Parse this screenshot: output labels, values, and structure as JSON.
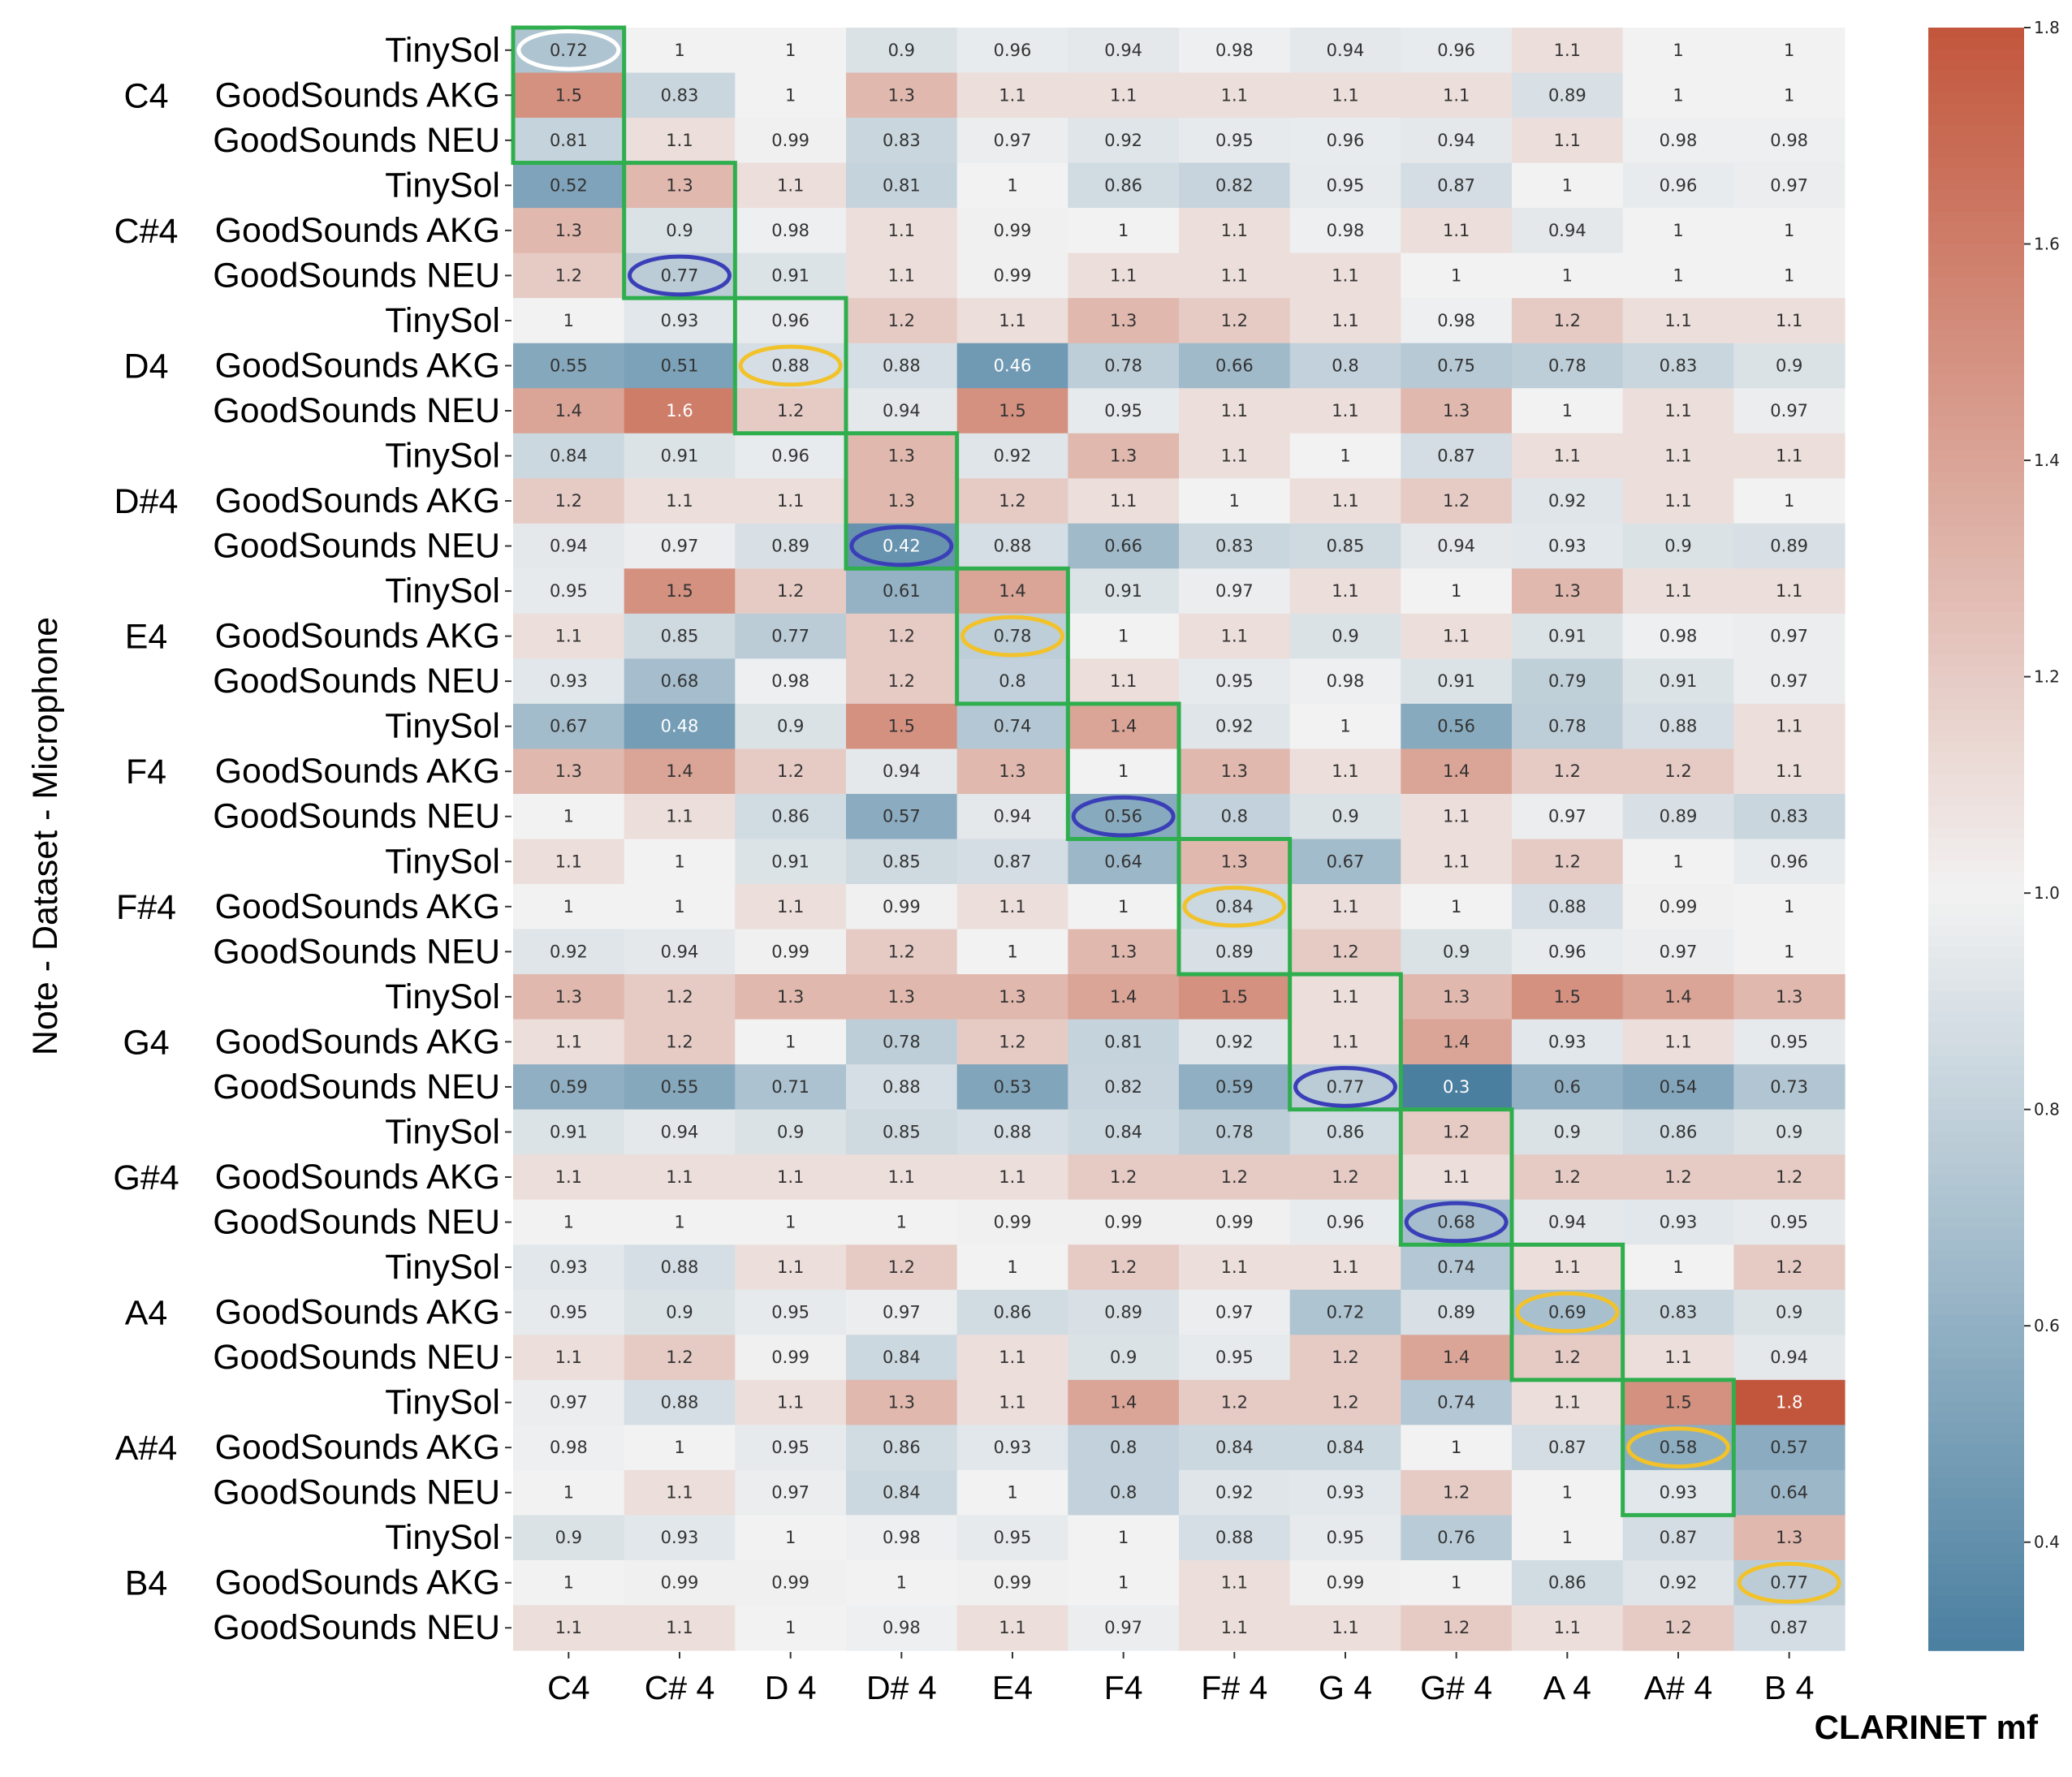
{
  "chart_data": {
    "type": "heatmap",
    "title": "CLARINET mf",
    "ylabel": "Note - Dataset - Microphone",
    "xlabel": "",
    "columns": [
      "C4",
      "C# 4",
      "D 4",
      "D# 4",
      "E4",
      "F4",
      "F# 4",
      "G 4",
      "G# 4",
      "A 4",
      "A# 4",
      "B 4"
    ],
    "notes": [
      "C4",
      "C#4",
      "D4",
      "D#4",
      "E4",
      "F4",
      "F#4",
      "G4",
      "G#4",
      "A4",
      "A#4",
      "B4"
    ],
    "datasets": [
      "TinySol",
      "GoodSounds AKG",
      "GoodSounds NEU"
    ],
    "values": [
      [
        0.72,
        1,
        1,
        0.9,
        0.96,
        0.94,
        0.98,
        0.94,
        0.96,
        1.1,
        1,
        1
      ],
      [
        1.5,
        0.83,
        1,
        1.3,
        1.1,
        1.1,
        1.1,
        1.1,
        1.1,
        0.89,
        1,
        1
      ],
      [
        0.81,
        1.1,
        0.99,
        0.83,
        0.97,
        0.92,
        0.95,
        0.96,
        0.94,
        1.1,
        0.98,
        0.98
      ],
      [
        0.52,
        1.3,
        1.1,
        0.81,
        1,
        0.86,
        0.82,
        0.95,
        0.87,
        1,
        0.96,
        0.97
      ],
      [
        1.3,
        0.9,
        0.98,
        1.1,
        0.99,
        1,
        1.1,
        0.98,
        1.1,
        0.94,
        1,
        1
      ],
      [
        1.2,
        0.77,
        0.91,
        1.1,
        0.99,
        1.1,
        1.1,
        1.1,
        1,
        1,
        1,
        1
      ],
      [
        1,
        0.93,
        0.96,
        1.2,
        1.1,
        1.3,
        1.2,
        1.1,
        0.98,
        1.2,
        1.1,
        1.1
      ],
      [
        0.55,
        0.51,
        0.88,
        0.88,
        0.46,
        0.78,
        0.66,
        0.8,
        0.75,
        0.78,
        0.83,
        0.9
      ],
      [
        1.4,
        1.6,
        1.2,
        0.94,
        1.5,
        0.95,
        1.1,
        1.1,
        1.3,
        1,
        1.1,
        0.97
      ],
      [
        0.84,
        0.91,
        0.96,
        1.3,
        0.92,
        1.3,
        1.1,
        1,
        0.87,
        1.1,
        1.1,
        1.1
      ],
      [
        1.2,
        1.1,
        1.1,
        1.3,
        1.2,
        1.1,
        1,
        1.1,
        1.2,
        0.92,
        1.1,
        1
      ],
      [
        0.94,
        0.97,
        0.89,
        0.42,
        0.88,
        0.66,
        0.83,
        0.85,
        0.94,
        0.93,
        0.9,
        0.89
      ],
      [
        0.95,
        1.5,
        1.2,
        0.61,
        1.4,
        0.91,
        0.97,
        1.1,
        1,
        1.3,
        1.1,
        1.1
      ],
      [
        1.1,
        0.85,
        0.77,
        1.2,
        0.78,
        1,
        1.1,
        0.9,
        1.1,
        0.91,
        0.98,
        0.97
      ],
      [
        0.93,
        0.68,
        0.98,
        1.2,
        0.8,
        1.1,
        0.95,
        0.98,
        0.91,
        0.79,
        0.91,
        0.97
      ],
      [
        0.67,
        0.48,
        0.9,
        1.5,
        0.74,
        1.4,
        0.92,
        1,
        0.56,
        0.78,
        0.88,
        1.1
      ],
      [
        1.3,
        1.4,
        1.2,
        0.94,
        1.3,
        1,
        1.3,
        1.1,
        1.4,
        1.2,
        1.2,
        1.1
      ],
      [
        1,
        1.1,
        0.86,
        0.57,
        0.94,
        0.56,
        0.8,
        0.9,
        1.1,
        0.97,
        0.89,
        0.83
      ],
      [
        1.1,
        1,
        0.91,
        0.85,
        0.87,
        0.64,
        1.3,
        0.67,
        1.1,
        1.2,
        1,
        0.96
      ],
      [
        1,
        1,
        1.1,
        0.99,
        1.1,
        1,
        0.84,
        1.1,
        1,
        0.88,
        0.99,
        1
      ],
      [
        0.92,
        0.94,
        0.99,
        1.2,
        1,
        1.3,
        0.89,
        1.2,
        0.9,
        0.96,
        0.97,
        1
      ],
      [
        1.3,
        1.2,
        1.3,
        1.3,
        1.3,
        1.4,
        1.5,
        1.1,
        1.3,
        1.5,
        1.4,
        1.3
      ],
      [
        1.1,
        1.2,
        1,
        0.78,
        1.2,
        0.81,
        0.92,
        1.1,
        1.4,
        0.93,
        1.1,
        0.95
      ],
      [
        0.59,
        0.55,
        0.71,
        0.88,
        0.53,
        0.82,
        0.59,
        0.77,
        0.3,
        0.6,
        0.54,
        0.73
      ],
      [
        0.91,
        0.94,
        0.9,
        0.85,
        0.88,
        0.84,
        0.78,
        0.86,
        1.2,
        0.9,
        0.86,
        0.9
      ],
      [
        1.1,
        1.1,
        1.1,
        1.1,
        1.1,
        1.2,
        1.2,
        1.2,
        1.1,
        1.2,
        1.2,
        1.2
      ],
      [
        1,
        1,
        1,
        1,
        0.99,
        0.99,
        0.99,
        0.96,
        0.68,
        0.94,
        0.93,
        0.95
      ],
      [
        0.93,
        0.88,
        1.1,
        1.2,
        1,
        1.2,
        1.1,
        1.1,
        0.74,
        1.1,
        1,
        1.2
      ],
      [
        0.95,
        0.9,
        0.95,
        0.97,
        0.86,
        0.89,
        0.97,
        0.72,
        0.89,
        0.69,
        0.83,
        0.9
      ],
      [
        1.1,
        1.2,
        0.99,
        0.84,
        1.1,
        0.9,
        0.95,
        1.2,
        1.4,
        1.2,
        1.1,
        0.94
      ],
      [
        0.97,
        0.88,
        1.1,
        1.3,
        1.1,
        1.4,
        1.2,
        1.2,
        0.74,
        1.1,
        1.5,
        1.8
      ],
      [
        0.98,
        1,
        0.95,
        0.86,
        0.93,
        0.8,
        0.84,
        0.84,
        1,
        0.87,
        0.58,
        0.57
      ],
      [
        1,
        1.1,
        0.97,
        0.84,
        1,
        0.8,
        0.92,
        0.93,
        1.2,
        1,
        0.93,
        0.64
      ],
      [
        0.9,
        0.93,
        1,
        0.98,
        0.95,
        1,
        0.88,
        0.95,
        0.76,
        1,
        0.87,
        1.3
      ],
      [
        1,
        0.99,
        0.99,
        1,
        0.99,
        1,
        1.1,
        0.99,
        1,
        0.86,
        0.92,
        0.77
      ],
      [
        1.1,
        1.1,
        1,
        0.98,
        1.1,
        0.97,
        1.1,
        1.1,
        1.2,
        1.1,
        1.2,
        0.87
      ]
    ],
    "vmin": 0.3,
    "vmax": 1.8,
    "center": 1.0,
    "colormap": {
      "low": "#4a7fa0",
      "mid": "#f2f2f2",
      "high": "#c2563c"
    },
    "colorbar_ticks": [
      0.4,
      0.6,
      0.8,
      1.0,
      1.2,
      1.4,
      1.6,
      1.8
    ],
    "colorbar_tick_labels": [
      "0.4",
      "0.6",
      "0.8",
      "1.0",
      "1.2",
      "1.4",
      "1.6",
      "1.8"
    ],
    "highlight_boxes_color": "#2fae4e",
    "highlight_boxes": [
      {
        "col": 0,
        "rows": [
          0,
          2
        ]
      },
      {
        "col": 1,
        "rows": [
          3,
          5
        ]
      },
      {
        "col": 2,
        "rows": [
          6,
          8
        ]
      },
      {
        "col": 3,
        "rows": [
          9,
          11
        ]
      },
      {
        "col": 4,
        "rows": [
          12,
          14
        ]
      },
      {
        "col": 5,
        "rows": [
          15,
          17
        ]
      },
      {
        "col": 6,
        "rows": [
          18,
          20
        ]
      },
      {
        "col": 7,
        "rows": [
          21,
          23
        ]
      },
      {
        "col": 8,
        "rows": [
          24,
          26
        ]
      },
      {
        "col": 9,
        "rows": [
          27,
          29
        ]
      },
      {
        "col": 10,
        "rows": [
          30,
          32
        ]
      }
    ],
    "circled_cells": [
      {
        "row": 0,
        "col": 0,
        "color": "#ffffff"
      },
      {
        "row": 5,
        "col": 1,
        "color": "#3a3fb8"
      },
      {
        "row": 7,
        "col": 2,
        "color": "#f2c22b"
      },
      {
        "row": 11,
        "col": 3,
        "color": "#3a3fb8"
      },
      {
        "row": 13,
        "col": 4,
        "color": "#f2c22b"
      },
      {
        "row": 17,
        "col": 5,
        "color": "#3a3fb8"
      },
      {
        "row": 19,
        "col": 6,
        "color": "#f2c22b"
      },
      {
        "row": 23,
        "col": 7,
        "color": "#3a3fb8"
      },
      {
        "row": 26,
        "col": 8,
        "color": "#3a3fb8"
      },
      {
        "row": 28,
        "col": 9,
        "color": "#f2c22b"
      },
      {
        "row": 31,
        "col": 10,
        "color": "#f2c22b"
      },
      {
        "row": 34,
        "col": 11,
        "color": "#f2c22b"
      }
    ]
  }
}
